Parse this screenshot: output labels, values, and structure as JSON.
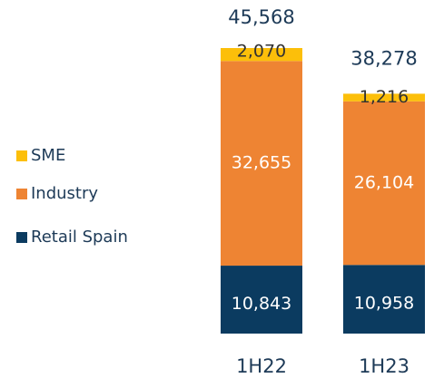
{
  "chart_data": {
    "type": "stacked_bar",
    "categories": [
      "1H22",
      "1H23"
    ],
    "series": [
      {
        "name": "Retail Spain",
        "color": "#0b3b60",
        "values": [
          10843,
          10958
        ],
        "value_labels": [
          "10,843",
          "10,958"
        ]
      },
      {
        "name": "Industry",
        "color": "#ee8433",
        "values": [
          32655,
          26104
        ],
        "value_labels": [
          "32,655",
          "26,104"
        ]
      },
      {
        "name": "SME",
        "color": "#fcbf0a",
        "values": [
          2070,
          1216
        ],
        "value_labels": [
          "2,070",
          "1,216"
        ]
      }
    ],
    "totals": [
      45568,
      38278
    ],
    "total_labels": [
      "45,568",
      "38,278"
    ]
  }
}
